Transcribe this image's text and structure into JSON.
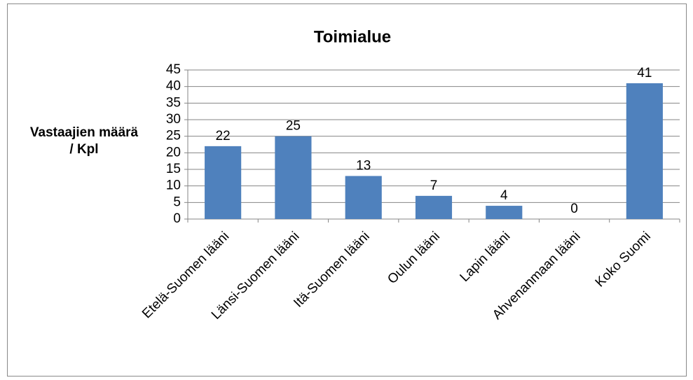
{
  "chart_data": {
    "type": "bar",
    "title": "Toimialue",
    "y_label": "Vastaajien määrä / Kpl",
    "categories": [
      "Etelä-Suomen lääni",
      "Länsi-Suomen lääni",
      "Itä-Suomen lääni",
      "Oulun lääni",
      "Lapin lääni",
      "Ahvenanmaan lääni",
      "Koko Suomi"
    ],
    "values": [
      22,
      25,
      13,
      7,
      4,
      0,
      41
    ],
    "color": "#4f81bd",
    "ylim": [
      0,
      45
    ],
    "yticks": [
      0,
      5,
      10,
      15,
      20,
      25,
      30,
      35,
      40,
      45
    ],
    "grid": true,
    "data_labels": true
  }
}
